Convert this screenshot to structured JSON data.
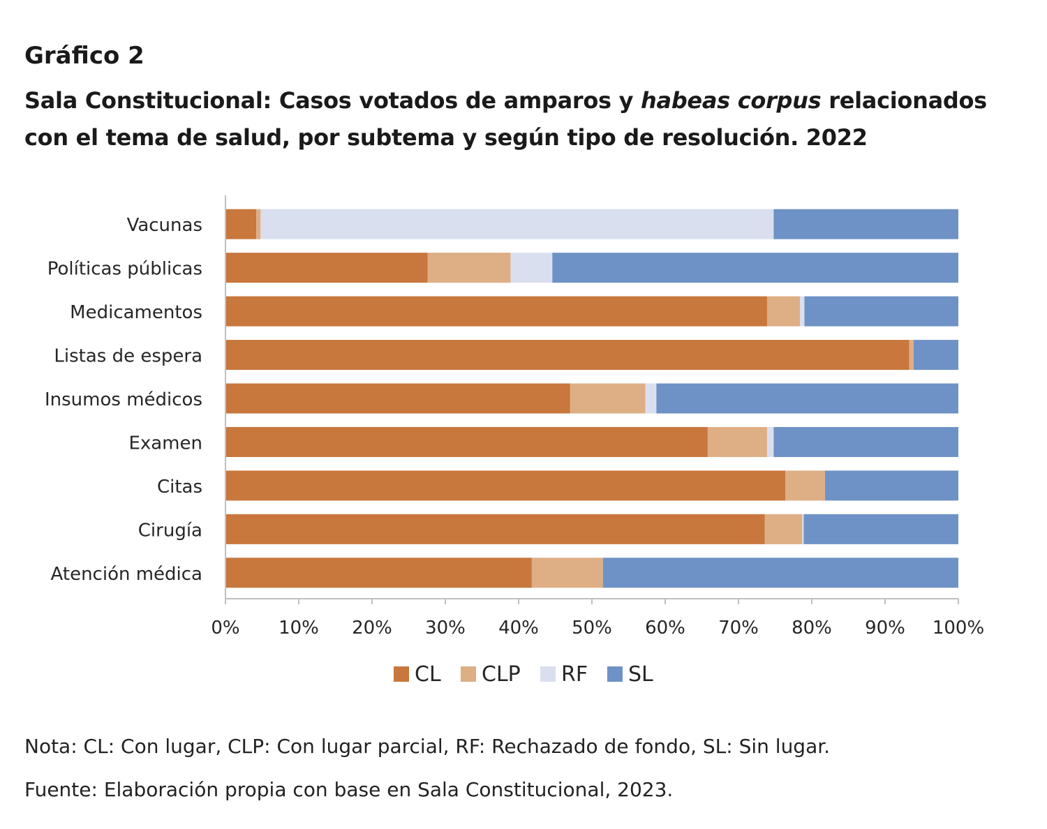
{
  "heading": {
    "label": "Gráfico 2",
    "title_part1": "Sala Constitucional: Casos votados de amparos y ",
    "title_italic": "habeas corpus",
    "title_part2": " relacionados con el tema de salud, por subtema y según tipo de resolución. 2022"
  },
  "notes": {
    "nota": "Nota: CL: Con lugar, CLP: Con lugar parcial, RF: Rechazado de fondo, SL: Sin lugar.",
    "fuente": "Fuente: Elaboración propia con base en Sala Constitucional, 2023."
  },
  "chart_data": {
    "type": "bar",
    "orientation": "horizontal",
    "stacked": "percent",
    "title": "",
    "xlabel": "",
    "ylabel": "",
    "xlim": [
      0,
      100
    ],
    "x_ticks": [
      "0%",
      "10%",
      "20%",
      "30%",
      "40%",
      "50%",
      "60%",
      "70%",
      "80%",
      "90%",
      "100%"
    ],
    "grid": false,
    "legend_position": "bottom",
    "categories": [
      "Vacunas",
      "Políticas públicas",
      "Medicamentos",
      "Listas de espera",
      "Insumos médicos",
      "Examen",
      "Citas",
      "Cirugía",
      "Atención médica"
    ],
    "series": [
      {
        "name": "CL",
        "color": "#C8773D",
        "values": [
          4.2,
          27.6,
          73.9,
          93.3,
          47.0,
          65.8,
          76.4,
          73.6,
          41.8
        ]
      },
      {
        "name": "CLP",
        "color": "#DEAE85",
        "values": [
          0.6,
          11.3,
          4.5,
          0.6,
          10.3,
          8.1,
          5.4,
          5.1,
          9.7
        ]
      },
      {
        "name": "RF",
        "color": "#DADFEF",
        "values": [
          70.0,
          5.7,
          0.6,
          0.0,
          1.5,
          0.9,
          0.0,
          0.2,
          0.0
        ]
      },
      {
        "name": "SL",
        "color": "#6E92C5",
        "values": [
          25.2,
          55.4,
          21.0,
          6.1,
          41.2,
          25.2,
          18.2,
          21.1,
          48.5
        ]
      }
    ]
  }
}
